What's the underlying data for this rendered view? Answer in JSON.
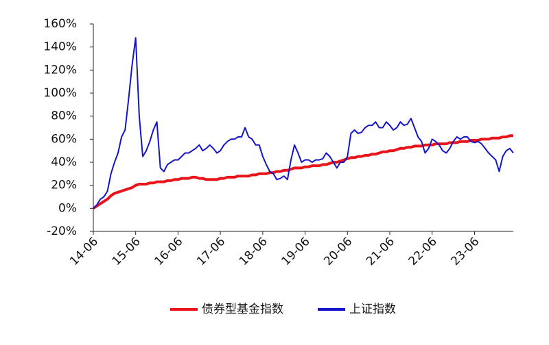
{
  "chart_data": {
    "type": "line",
    "x": [
      "14-06",
      "14-07",
      "14-08",
      "14-09",
      "14-10",
      "14-11",
      "14-12",
      "15-01",
      "15-02",
      "15-03",
      "15-04",
      "15-05",
      "15-06",
      "15-07",
      "15-08",
      "15-09",
      "15-10",
      "15-11",
      "15-12",
      "16-01",
      "16-02",
      "16-03",
      "16-04",
      "16-05",
      "16-06",
      "16-07",
      "16-08",
      "16-09",
      "16-10",
      "16-11",
      "16-12",
      "17-01",
      "17-02",
      "17-03",
      "17-04",
      "17-05",
      "17-06",
      "17-07",
      "17-08",
      "17-09",
      "17-10",
      "17-11",
      "17-12",
      "18-01",
      "18-02",
      "18-03",
      "18-04",
      "18-05",
      "18-06",
      "18-07",
      "18-08",
      "18-09",
      "18-10",
      "18-11",
      "18-12",
      "19-01",
      "19-02",
      "19-03",
      "19-04",
      "19-05",
      "19-06",
      "19-07",
      "19-08",
      "19-09",
      "19-10",
      "19-11",
      "19-12",
      "20-01",
      "20-02",
      "20-03",
      "20-04",
      "20-05",
      "20-06",
      "20-07",
      "20-08",
      "20-09",
      "20-10",
      "20-11",
      "20-12",
      "21-01",
      "21-02",
      "21-03",
      "21-04",
      "21-05",
      "21-06",
      "21-07",
      "21-08",
      "21-09",
      "21-10",
      "21-11",
      "21-12",
      "22-01",
      "22-02",
      "22-03",
      "22-04",
      "22-05",
      "22-06",
      "22-07",
      "22-08",
      "22-09",
      "22-10",
      "22-11",
      "22-12",
      "23-01",
      "23-02",
      "23-03",
      "23-04",
      "23-05",
      "23-06",
      "23-07",
      "23-08",
      "23-09",
      "23-10",
      "23-11",
      "23-12",
      "24-01",
      "24-02",
      "24-03",
      "24-04",
      "24-05"
    ],
    "series": [
      {
        "name": "债券型基金指数",
        "color": "#e8141a",
        "values": [
          0,
          2,
          4,
          6,
          8,
          11,
          13,
          14,
          15,
          16,
          17,
          18,
          20,
          21,
          21,
          21,
          22,
          22,
          23,
          23,
          23,
          24,
          24,
          25,
          25,
          26,
          26,
          26,
          27,
          27,
          26,
          26,
          25,
          25,
          25,
          25,
          26,
          26,
          27,
          27,
          27,
          28,
          28,
          28,
          28,
          29,
          29,
          30,
          30,
          30,
          31,
          31,
          32,
          32,
          33,
          33,
          34,
          35,
          35,
          35,
          36,
          36,
          37,
          37,
          37,
          38,
          38,
          39,
          40,
          40,
          41,
          42,
          43,
          44,
          44,
          45,
          45,
          46,
          46,
          47,
          47,
          48,
          49,
          49,
          50,
          50,
          51,
          52,
          52,
          53,
          53,
          54,
          54,
          54,
          55,
          55,
          55,
          56,
          56,
          56,
          56,
          57,
          57,
          57,
          58,
          58,
          58,
          59,
          59,
          59,
          60,
          60,
          60,
          61,
          61,
          61,
          62,
          62,
          63,
          63
        ]
      },
      {
        "name": "上证指数",
        "color": "#1414c8",
        "values": [
          0,
          3,
          8,
          10,
          15,
          30,
          40,
          48,
          62,
          68,
          95,
          125,
          148,
          80,
          45,
          50,
          58,
          68,
          75,
          35,
          32,
          38,
          40,
          42,
          42,
          45,
          48,
          48,
          50,
          52,
          55,
          50,
          52,
          55,
          52,
          48,
          50,
          55,
          58,
          60,
          60,
          62,
          62,
          70,
          62,
          60,
          55,
          55,
          45,
          38,
          32,
          30,
          25,
          26,
          28,
          25,
          42,
          55,
          48,
          40,
          42,
          42,
          40,
          42,
          42,
          43,
          48,
          45,
          40,
          35,
          40,
          40,
          45,
          65,
          68,
          65,
          66,
          70,
          72,
          72,
          75,
          70,
          70,
          75,
          72,
          68,
          70,
          75,
          72,
          73,
          78,
          70,
          62,
          58,
          48,
          52,
          60,
          58,
          55,
          50,
          48,
          52,
          58,
          62,
          60,
          62,
          62,
          58,
          57,
          58,
          56,
          52,
          48,
          45,
          42,
          32,
          45,
          50,
          52,
          48
        ]
      }
    ],
    "ylim": [
      -20,
      160
    ],
    "yticks": [
      {
        "value": -20,
        "label": "-20%"
      },
      {
        "value": 0,
        "label": "0%"
      },
      {
        "value": 20,
        "label": "20%"
      },
      {
        "value": 40,
        "label": "40%"
      },
      {
        "value": 60,
        "label": "60%"
      },
      {
        "value": 80,
        "label": "80%"
      },
      {
        "value": 100,
        "label": "100%"
      },
      {
        "value": 120,
        "label": "120%"
      },
      {
        "value": 140,
        "label": "140%"
      },
      {
        "value": 160,
        "label": "160%"
      }
    ],
    "xticks": [
      "14-06",
      "15-06",
      "16-06",
      "17-06",
      "18-06",
      "19-06",
      "20-06",
      "21-06",
      "22-06",
      "23-06"
    ],
    "legend": "bottom"
  }
}
